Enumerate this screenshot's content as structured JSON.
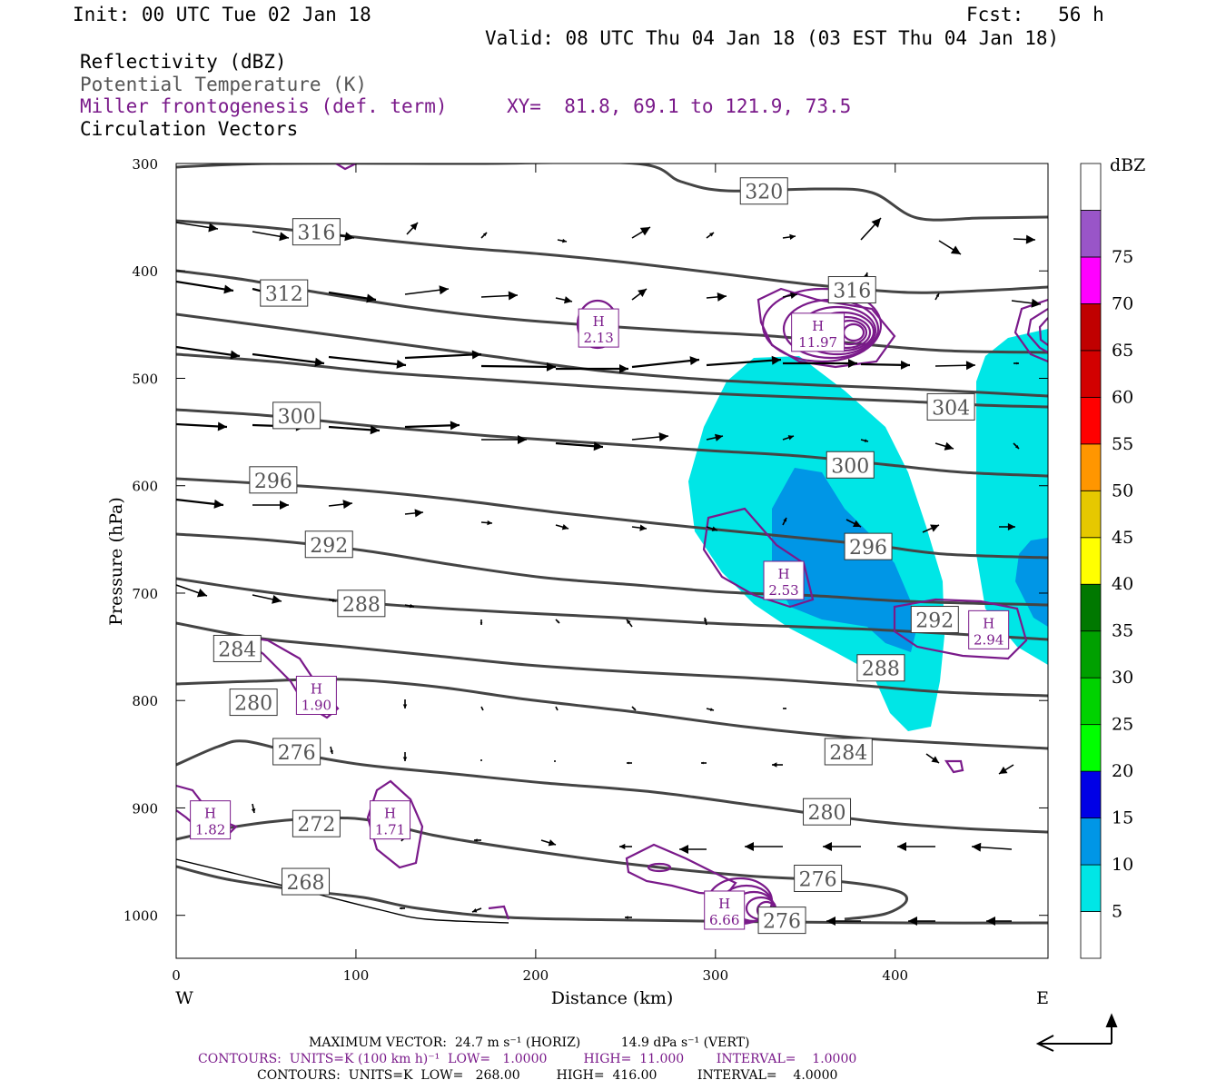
{
  "header": {
    "init": "Init: 00 UTC Tue 02 Jan 18",
    "fcst": "Fcst:   56 h",
    "valid": "Valid: 08 UTC Thu 04 Jan 18 (03 EST Thu 04 Jan 18)",
    "fields": [
      {
        "label": "Reflectivity (dBZ)",
        "color": "#000000"
      },
      {
        "label": "Potential Temperature (K)",
        "color": "#555555"
      },
      {
        "label": "Miller frontogenesis (def. term)",
        "color": "#7a1a8a"
      },
      {
        "label": "Circulation Vectors",
        "color": "#000000"
      }
    ],
    "xy": "XY=  81.8, 69.1 to 121.9, 73.5"
  },
  "footer": {
    "max_vector": "MAXIMUM VECTOR:  24.7 m s⁻¹ (HORIZ)          14.9 dPa s⁻¹ (VERT)",
    "contours1": "CONTOURS:  UNITS=K (100 km h)⁻¹  LOW=   1.0000         HIGH=  11.000        INTERVAL=    1.0000",
    "contours2": "CONTOURS:  UNITS=K  LOW=   268.00         HIGH=  416.00          INTERVAL=    4.0000"
  },
  "chart_data": {
    "type": "contour",
    "xlabel": "Distance (km)",
    "ylabel": "Pressure (hPa)",
    "xlim": [
      0,
      485
    ],
    "ylim": [
      1040,
      300
    ],
    "x_ticks": [
      0,
      100,
      200,
      300,
      400
    ],
    "y_ticks": [
      300,
      400,
      500,
      600,
      700,
      800,
      900,
      1000
    ],
    "x_end_labels": {
      "left": "W",
      "right": "E"
    },
    "colorbar": {
      "unit": "dBZ",
      "levels": [
        5,
        10,
        15,
        20,
        25,
        30,
        35,
        40,
        45,
        50,
        55,
        60,
        65,
        70,
        75
      ],
      "colors": [
        "#ffffff",
        "#00e6e6",
        "#0096e6",
        "#0000e6",
        "#00ff00",
        "#00d200",
        "#00a000",
        "#007800",
        "#ffff00",
        "#e6c800",
        "#ff9600",
        "#ff0000",
        "#d20000",
        "#c00000",
        "#ff00ff",
        "#9955c8",
        "#ffffff"
      ]
    },
    "theta_labels": [
      {
        "v": "320",
        "x": 327,
        "p": 326
      },
      {
        "v": "316",
        "x": 78,
        "p": 364
      },
      {
        "v": "316",
        "x": 376,
        "p": 418
      },
      {
        "v": "312",
        "x": 60,
        "p": 421
      },
      {
        "v": "304",
        "x": 431,
        "p": 527
      },
      {
        "v": "300",
        "x": 67,
        "p": 535
      },
      {
        "v": "300",
        "x": 375,
        "p": 581
      },
      {
        "v": "296",
        "x": 54,
        "p": 595
      },
      {
        "v": "296",
        "x": 385,
        "p": 657
      },
      {
        "v": "292",
        "x": 85,
        "p": 655
      },
      {
        "v": "292",
        "x": 422,
        "p": 725
      },
      {
        "v": "288",
        "x": 103,
        "p": 710
      },
      {
        "v": "288",
        "x": 392,
        "p": 770
      },
      {
        "v": "284",
        "x": 34,
        "p": 752
      },
      {
        "v": "284",
        "x": 374,
        "p": 848
      },
      {
        "v": "280",
        "x": 43,
        "p": 802
      },
      {
        "v": "280",
        "x": 362,
        "p": 904
      },
      {
        "v": "276",
        "x": 67,
        "p": 848
      },
      {
        "v": "276",
        "x": 357,
        "p": 966
      },
      {
        "v": "276",
        "x": 337,
        "p": 1005
      },
      {
        "v": "272",
        "x": 78,
        "p": 915
      },
      {
        "v": "268",
        "x": 72,
        "p": 969
      }
    ],
    "fronto_maxima": [
      {
        "v": "2.13",
        "x": 235,
        "p": 454
      },
      {
        "v": "11.97",
        "x": 357,
        "p": 458
      },
      {
        "v": "2.53",
        "x": 338,
        "p": 689
      },
      {
        "v": "2.94",
        "x": 452,
        "p": 735
      },
      {
        "v": "1.90",
        "x": 78,
        "p": 796
      },
      {
        "v": "1.82",
        "x": 19,
        "p": 912
      },
      {
        "v": "1.71",
        "x": 119,
        "p": 912
      },
      {
        "v": "6.66",
        "x": 305,
        "p": 996
      }
    ],
    "max_label": "H"
  }
}
